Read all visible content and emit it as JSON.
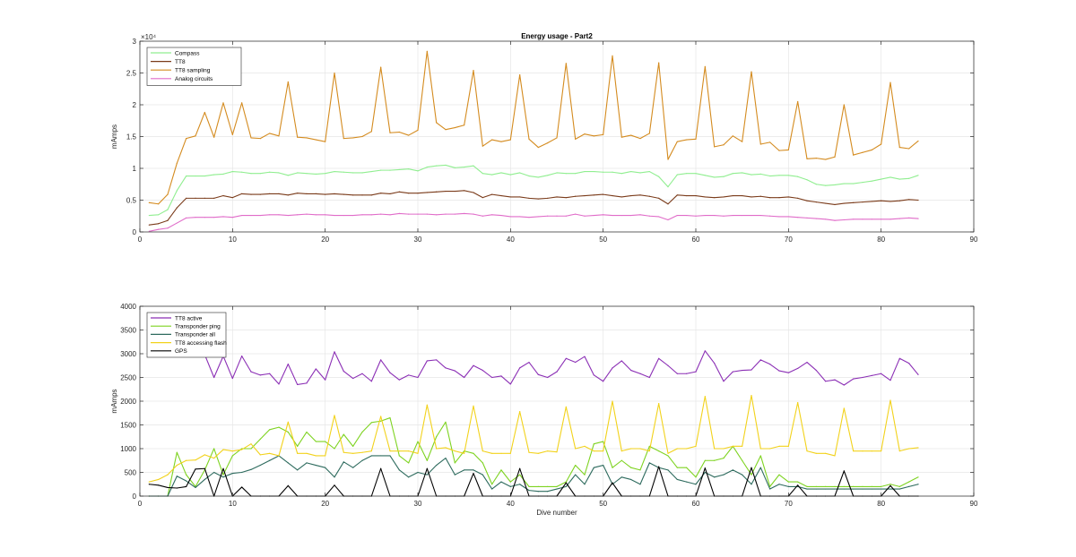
{
  "chart_data": [
    {
      "type": "line",
      "title": "Energy usage - Part2",
      "xlabel": "",
      "ylabel": "mAmps",
      "y_exponent_label": "×10⁴",
      "xlim": [
        0,
        90
      ],
      "ylim": [
        0,
        30000
      ],
      "xticks": [
        0,
        10,
        20,
        30,
        40,
        50,
        60,
        70,
        80,
        90
      ],
      "yticks": [
        0,
        5000,
        10000,
        15000,
        20000,
        25000,
        30000
      ],
      "ytick_labels": [
        "0",
        "0.5",
        "1",
        "1.5",
        "2",
        "2.5",
        "3"
      ],
      "grid": true,
      "legend_location": "top-left",
      "x": [
        1,
        2,
        3,
        4,
        5,
        6,
        7,
        8,
        9,
        10,
        11,
        12,
        13,
        14,
        15,
        16,
        17,
        18,
        19,
        20,
        21,
        22,
        23,
        24,
        25,
        26,
        27,
        28,
        29,
        30,
        31,
        32,
        33,
        34,
        35,
        36,
        37,
        38,
        39,
        40,
        41,
        42,
        43,
        44,
        45,
        46,
        47,
        48,
        49,
        50,
        51,
        52,
        53,
        54,
        55,
        56,
        57,
        58,
        59,
        60,
        61,
        62,
        63,
        64,
        65,
        66,
        67,
        68,
        69,
        70,
        71,
        72,
        73,
        74,
        75,
        76,
        77,
        78,
        79,
        80,
        81,
        82,
        83,
        84
      ],
      "series": [
        {
          "name": "Compass",
          "color": "#90ee90",
          "values": [
            2600,
            2700,
            3500,
            6500,
            8800,
            8800,
            8800,
            9000,
            9100,
            9500,
            9400,
            9200,
            9200,
            9400,
            9300,
            8900,
            9300,
            9200,
            9100,
            9200,
            9500,
            9400,
            9300,
            9300,
            9500,
            9700,
            9700,
            9800,
            9900,
            9600,
            10200,
            10400,
            10500,
            10100,
            10200,
            10400,
            9200,
            9000,
            9300,
            9000,
            9300,
            8800,
            8600,
            8900,
            9300,
            9200,
            9200,
            9500,
            9500,
            9400,
            9400,
            9200,
            9500,
            9300,
            9500,
            8700,
            7100,
            9000,
            9200,
            9200,
            8900,
            8600,
            8700,
            9200,
            9300,
            9000,
            9100,
            8800,
            8900,
            8900,
            8700,
            8200,
            7500,
            7300,
            7400,
            7600,
            7600,
            7800,
            8000,
            8300,
            8600,
            8300,
            8400,
            8900
          ]
        },
        {
          "name": "TT8",
          "color": "#7a3b1a",
          "values": [
            1100,
            1300,
            1800,
            3800,
            5300,
            5300,
            5300,
            5300,
            5700,
            5400,
            6000,
            5900,
            5900,
            6000,
            6000,
            5800,
            6100,
            6000,
            6000,
            5900,
            6000,
            5900,
            5800,
            5800,
            5800,
            6100,
            6000,
            6300,
            6100,
            6100,
            6200,
            6300,
            6400,
            6400,
            6500,
            6200,
            5400,
            5900,
            5700,
            5500,
            5500,
            5300,
            5200,
            5300,
            5500,
            5400,
            5600,
            5700,
            5800,
            5900,
            5700,
            5500,
            5700,
            5800,
            5600,
            5300,
            4400,
            5800,
            5700,
            5700,
            5500,
            5400,
            5500,
            5700,
            5700,
            5500,
            5600,
            5400,
            5400,
            5500,
            5300,
            4900,
            4700,
            4500,
            4300,
            4500,
            4600,
            4700,
            4800,
            4900,
            4800,
            4900,
            5100,
            5000
          ]
        },
        {
          "name": "TT8 sampling",
          "color": "#d48b1f",
          "values": [
            4600,
            4400,
            5900,
            10800,
            14700,
            15100,
            18800,
            14900,
            20300,
            15300,
            20300,
            14800,
            14700,
            15500,
            15100,
            23600,
            14900,
            14800,
            14500,
            14200,
            25000,
            14700,
            14800,
            15000,
            15800,
            25900,
            15600,
            15700,
            15200,
            16000,
            28400,
            17200,
            16100,
            16400,
            16800,
            25400,
            13500,
            14500,
            14200,
            14500,
            24700,
            14600,
            13300,
            14000,
            14800,
            26500,
            14600,
            15400,
            15100,
            15300,
            27700,
            14900,
            15200,
            14700,
            15500,
            26600,
            11400,
            14200,
            14500,
            14600,
            26000,
            13400,
            13700,
            15100,
            14200,
            25200,
            13800,
            14100,
            12800,
            12900,
            20500,
            11500,
            11600,
            11400,
            11800,
            20000,
            12100,
            12500,
            12900,
            13800,
            23500,
            13300,
            13100,
            14300
          ]
        },
        {
          "name": "Analog circuits",
          "color": "#e06cc9",
          "values": [
            100,
            400,
            600,
            1400,
            2200,
            2300,
            2300,
            2300,
            2400,
            2300,
            2600,
            2600,
            2600,
            2700,
            2700,
            2600,
            2700,
            2800,
            2700,
            2700,
            2600,
            2600,
            2600,
            2700,
            2700,
            2800,
            2700,
            2900,
            2800,
            2800,
            2800,
            2700,
            2800,
            2800,
            2900,
            2800,
            2500,
            2700,
            2600,
            2400,
            2400,
            2300,
            2400,
            2500,
            2500,
            2500,
            2800,
            2500,
            2600,
            2700,
            2600,
            2600,
            2600,
            2700,
            2500,
            2400,
            1900,
            2600,
            2600,
            2500,
            2600,
            2600,
            2500,
            2600,
            2600,
            2600,
            2600,
            2500,
            2400,
            2400,
            2300,
            2200,
            2100,
            2000,
            1800,
            1900,
            2000,
            2000,
            2000,
            2000,
            2000,
            2100,
            2200,
            2100
          ]
        }
      ]
    },
    {
      "type": "line",
      "title": "",
      "xlabel": "Dive number",
      "ylabel": "mAmps",
      "xlim": [
        0,
        90
      ],
      "ylim": [
        0,
        4000
      ],
      "xticks": [
        0,
        10,
        20,
        30,
        40,
        50,
        60,
        70,
        80,
        90
      ],
      "yticks": [
        0,
        500,
        1000,
        1500,
        2000,
        2500,
        3000,
        3500,
        4000
      ],
      "ytick_labels": [
        "0",
        "500",
        "1000",
        "1500",
        "2000",
        "2500",
        "3000",
        "3500",
        "4000"
      ],
      "grid": true,
      "legend_location": "top-left",
      "x": [
        1,
        2,
        3,
        4,
        5,
        6,
        7,
        8,
        9,
        10,
        11,
        12,
        13,
        14,
        15,
        16,
        17,
        18,
        19,
        20,
        21,
        22,
        23,
        24,
        25,
        26,
        27,
        28,
        29,
        30,
        31,
        32,
        33,
        34,
        35,
        36,
        37,
        38,
        39,
        40,
        41,
        42,
        43,
        44,
        45,
        46,
        47,
        48,
        49,
        50,
        51,
        52,
        53,
        54,
        55,
        56,
        57,
        58,
        59,
        60,
        61,
        62,
        63,
        64,
        65,
        66,
        67,
        68,
        69,
        70,
        71,
        72,
        73,
        74,
        75,
        76,
        77,
        78,
        79,
        80,
        81,
        82,
        83,
        84
      ],
      "series": [
        {
          "name": "TT8 active",
          "color": "#8b2fb5",
          "values": [
            null,
            null,
            null,
            null,
            null,
            null,
            2980,
            2500,
            2950,
            2480,
            2950,
            2620,
            2550,
            2580,
            2360,
            2780,
            2350,
            2380,
            2680,
            2450,
            3040,
            2630,
            2480,
            2580,
            2420,
            2870,
            2600,
            2450,
            2550,
            2500,
            2850,
            2870,
            2700,
            2640,
            2500,
            2750,
            2650,
            2500,
            2530,
            2360,
            2700,
            2820,
            2560,
            2500,
            2620,
            2900,
            2820,
            2940,
            2550,
            2420,
            2700,
            2850,
            2650,
            2580,
            2500,
            2900,
            2750,
            2580,
            2580,
            2620,
            3060,
            2800,
            2420,
            2620,
            2650,
            2660,
            2870,
            2780,
            2640,
            2600,
            2690,
            2820,
            2650,
            2420,
            2450,
            2340,
            2470,
            2500,
            2540,
            2580,
            2440,
            2900,
            2800,
            2560
          ]
        },
        {
          "name": "Transponder ping",
          "color": "#7ed321",
          "values": [
            0,
            0,
            0,
            920,
            450,
            200,
            550,
            1000,
            450,
            850,
            1000,
            1000,
            1200,
            1400,
            1450,
            1350,
            1050,
            1350,
            1150,
            1150,
            1000,
            1300,
            1050,
            1350,
            1550,
            1580,
            1650,
            850,
            700,
            1150,
            750,
            1250,
            1560,
            700,
            950,
            900,
            700,
            250,
            550,
            300,
            450,
            200,
            200,
            200,
            200,
            300,
            650,
            450,
            1100,
            1150,
            600,
            750,
            600,
            550,
            1050,
            950,
            850,
            600,
            600,
            400,
            750,
            750,
            800,
            1050,
            750,
            450,
            850,
            200,
            450,
            300,
            300,
            200,
            200,
            200,
            200,
            200,
            200,
            200,
            200,
            200,
            250,
            200,
            300,
            400
          ]
        },
        {
          "name": "Transponder all",
          "color": "#2e6b5e",
          "values": [
            0,
            0,
            0,
            420,
            320,
            180,
            350,
            500,
            400,
            480,
            500,
            560,
            650,
            750,
            850,
            700,
            550,
            700,
            650,
            600,
            400,
            720,
            600,
            750,
            850,
            850,
            850,
            550,
            400,
            500,
            450,
            650,
            800,
            450,
            550,
            550,
            450,
            150,
            300,
            200,
            250,
            120,
            100,
            100,
            150,
            200,
            450,
            250,
            600,
            650,
            250,
            400,
            350,
            250,
            700,
            600,
            550,
            350,
            300,
            250,
            500,
            400,
            450,
            550,
            450,
            250,
            600,
            150,
            250,
            200,
            200,
            150,
            150,
            150,
            150,
            150,
            150,
            150,
            150,
            150,
            150,
            150,
            200,
            250
          ]
        },
        {
          "name": "TT8 accessing flash",
          "color": "#f2d21b",
          "values": [
            300,
            350,
            450,
            650,
            750,
            760,
            870,
            800,
            980,
            950,
            980,
            1100,
            870,
            900,
            850,
            1560,
            900,
            900,
            850,
            850,
            1700,
            920,
            900,
            920,
            950,
            1680,
            950,
            950,
            950,
            900,
            1920,
            1000,
            1020,
            950,
            900,
            1900,
            950,
            900,
            900,
            900,
            1780,
            920,
            900,
            950,
            930,
            1880,
            1000,
            1050,
            950,
            950,
            2000,
            950,
            1000,
            1000,
            950,
            1950,
            900,
            1000,
            1000,
            1050,
            2100,
            1000,
            1000,
            1050,
            1050,
            2120,
            1000,
            1000,
            1050,
            1050,
            1970,
            950,
            900,
            900,
            850,
            1850,
            950,
            950,
            950,
            950,
            2020,
            950,
            1000,
            1020
          ]
        },
        {
          "name": "GPS",
          "color": "#000000",
          "values": [
            250,
            230,
            180,
            170,
            200,
            570,
            580,
            0,
            580,
            0,
            190,
            0,
            0,
            0,
            0,
            220,
            0,
            0,
            0,
            0,
            230,
            0,
            0,
            0,
            0,
            580,
            0,
            0,
            0,
            0,
            580,
            0,
            0,
            0,
            0,
            480,
            0,
            0,
            0,
            0,
            580,
            0,
            0,
            0,
            0,
            280,
            0,
            0,
            0,
            0,
            280,
            0,
            0,
            0,
            0,
            620,
            0,
            0,
            0,
            0,
            590,
            0,
            0,
            0,
            0,
            600,
            0,
            0,
            0,
            0,
            230,
            0,
            0,
            0,
            0,
            530,
            0,
            0,
            0,
            0,
            220,
            0,
            0,
            0
          ]
        }
      ]
    }
  ]
}
